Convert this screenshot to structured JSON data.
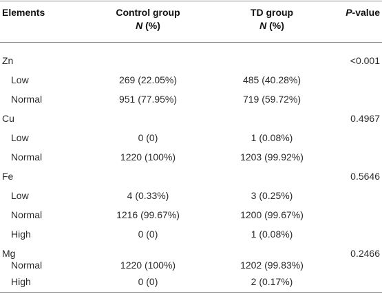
{
  "header": {
    "elements": "Elements",
    "control_group": "Control group",
    "control_n": "N",
    "control_pct": " (%)",
    "td_group": "TD group",
    "td_n": "N",
    "td_pct": " (%)",
    "p_italic": "P",
    "p_rest": "-value"
  },
  "rows": [
    {
      "label": "Zn",
      "control": "",
      "td": "",
      "p": "<0.001"
    },
    {
      "label": "Low",
      "control": "269 (22.05%)",
      "td": "485 (40.28%)",
      "p": ""
    },
    {
      "label": "Normal",
      "control": "951 (77.95%)",
      "td": "719 (59.72%)",
      "p": ""
    },
    {
      "label": "Cu",
      "control": "",
      "td": "",
      "p": "0.4967"
    },
    {
      "label": "Low",
      "control": "0 (0)",
      "td": "1 (0.08%)",
      "p": ""
    },
    {
      "label": "Normal",
      "control": "1220 (100%)",
      "td": "1203 (99.92%)",
      "p": ""
    },
    {
      "label": "Fe",
      "control": "",
      "td": "",
      "p": "0.5646"
    },
    {
      "label": "Low",
      "control": "4 (0.33%)",
      "td": "3 (0.25%)",
      "p": ""
    },
    {
      "label": "Normal",
      "control": "1216 (99.67%)",
      "td": "1200 (99.67%)",
      "p": ""
    },
    {
      "label": "High",
      "control": "0 (0)",
      "td": "1 (0.08%)",
      "p": ""
    },
    {
      "label": "Mg",
      "control": "",
      "td": "",
      "p": "0.2466"
    },
    {
      "label": "Normal",
      "control": "1220 (100%)",
      "td": "1202 (99.83%)",
      "p": ""
    },
    {
      "label": "High",
      "control": "0 (0)",
      "td": "2 (0.17%)",
      "p": ""
    }
  ]
}
